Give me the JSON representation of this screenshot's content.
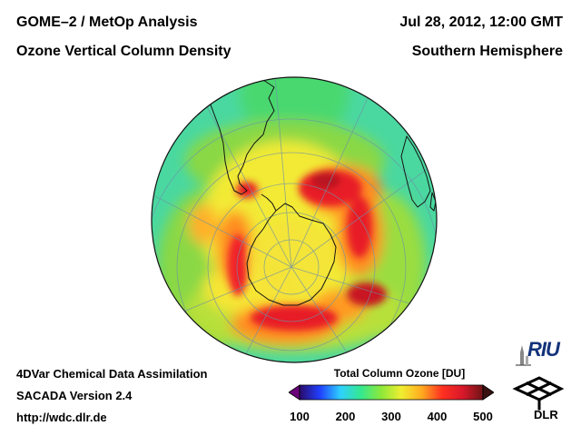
{
  "header": {
    "title_line1": "GOME–2 / MetOp Analysis",
    "title_line2": "Ozone Vertical Column Density",
    "date": "Jul 28, 2012, 12:00 GMT",
    "region": "Southern Hemisphere"
  },
  "footer": {
    "line1": "4DVar Chemical Data Assimilation",
    "line2": "SACADA Version 2.4",
    "line3": "http://wdc.dlr.de"
  },
  "colorbar": {
    "title": "Total Column Ozone [DU]",
    "min": 100,
    "max": 500,
    "ticks": [
      "100",
      "200",
      "300",
      "400",
      "500"
    ],
    "colors": [
      "#2a0a6a",
      "#2040ff",
      "#2ed0ff",
      "#34e890",
      "#8ce83a",
      "#f0ee30",
      "#ffaa20",
      "#ff3020",
      "#d8182a",
      "#6e1416"
    ]
  },
  "map": {
    "projection": "orthographic, south pole centred",
    "background_color": "#4ad8a0"
  },
  "logos": {
    "riu": "RIU",
    "dlr": "DLR"
  }
}
